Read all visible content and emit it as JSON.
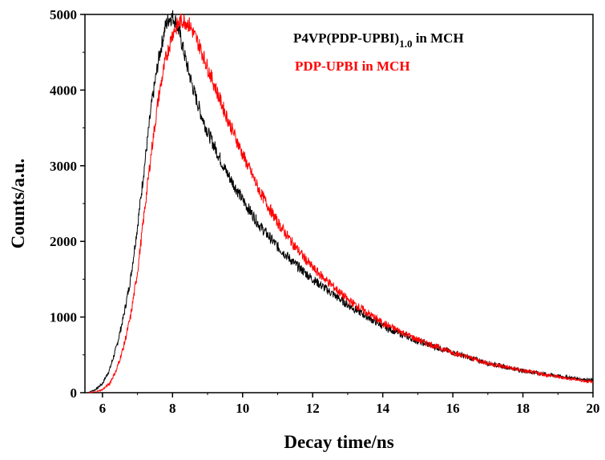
{
  "chart_data": {
    "type": "line",
    "xlabel": "Decay time/ns",
    "ylabel": "Counts/a.u.",
    "xlim": [
      5.5,
      20
    ],
    "ylim": [
      0,
      5000
    ],
    "x_ticks": [
      6,
      8,
      10,
      12,
      14,
      16,
      18,
      20
    ],
    "y_ticks": [
      0,
      1000,
      2000,
      3000,
      4000,
      5000
    ],
    "x_tick_labels": [
      "6",
      "8",
      "10",
      "12",
      "14",
      "16",
      "18",
      "20"
    ],
    "y_tick_labels": [
      "0",
      "1000",
      "2000",
      "3000",
      "4000",
      "5000"
    ],
    "grid": false,
    "legend_position": "top-right",
    "series": [
      {
        "name": "P4VP(PDP-UPBI)1.0 in MCH",
        "legend_main": "P4VP(PDP-UPBI)",
        "legend_sub": "1.0",
        "legend_tail": " in MCH",
        "color": "#000000",
        "x": [
          5.6,
          5.8,
          6.0,
          6.2,
          6.4,
          6.6,
          6.8,
          7.0,
          7.2,
          7.4,
          7.6,
          7.8,
          7.9,
          8.0,
          8.1,
          8.2,
          8.4,
          8.6,
          8.8,
          9.0,
          9.5,
          10.0,
          10.5,
          11.0,
          11.5,
          12.0,
          13.0,
          14.0,
          15.0,
          16.0,
          17.0,
          18.0,
          19.0,
          20.0
        ],
        "y": [
          5,
          40,
          120,
          300,
          600,
          1000,
          1500,
          2200,
          3000,
          3800,
          4400,
          4850,
          4950,
          4970,
          4900,
          4750,
          4350,
          4000,
          3700,
          3450,
          2950,
          2550,
          2200,
          1930,
          1700,
          1500,
          1160,
          880,
          680,
          530,
          390,
          290,
          220,
          160
        ]
      },
      {
        "name": "PDP-UPBI in MCH",
        "legend_main": "PDP-UPBI in MCH",
        "legend_sub": "",
        "legend_tail": "",
        "color": "#ff0000",
        "x": [
          5.6,
          5.8,
          6.0,
          6.2,
          6.4,
          6.6,
          6.8,
          7.0,
          7.2,
          7.4,
          7.6,
          7.8,
          8.0,
          8.2,
          8.3,
          8.4,
          8.5,
          8.6,
          8.8,
          9.0,
          9.5,
          10.0,
          10.5,
          11.0,
          11.5,
          12.0,
          13.0,
          14.0,
          15.0,
          16.0,
          17.0,
          18.0,
          19.0,
          20.0
        ],
        "y": [
          0,
          10,
          40,
          120,
          300,
          600,
          1000,
          1600,
          2400,
          3200,
          3900,
          4400,
          4750,
          4900,
          4920,
          4900,
          4850,
          4750,
          4550,
          4300,
          3700,
          3150,
          2650,
          2250,
          1930,
          1650,
          1230,
          920,
          700,
          530,
          390,
          290,
          210,
          140
        ]
      }
    ]
  }
}
